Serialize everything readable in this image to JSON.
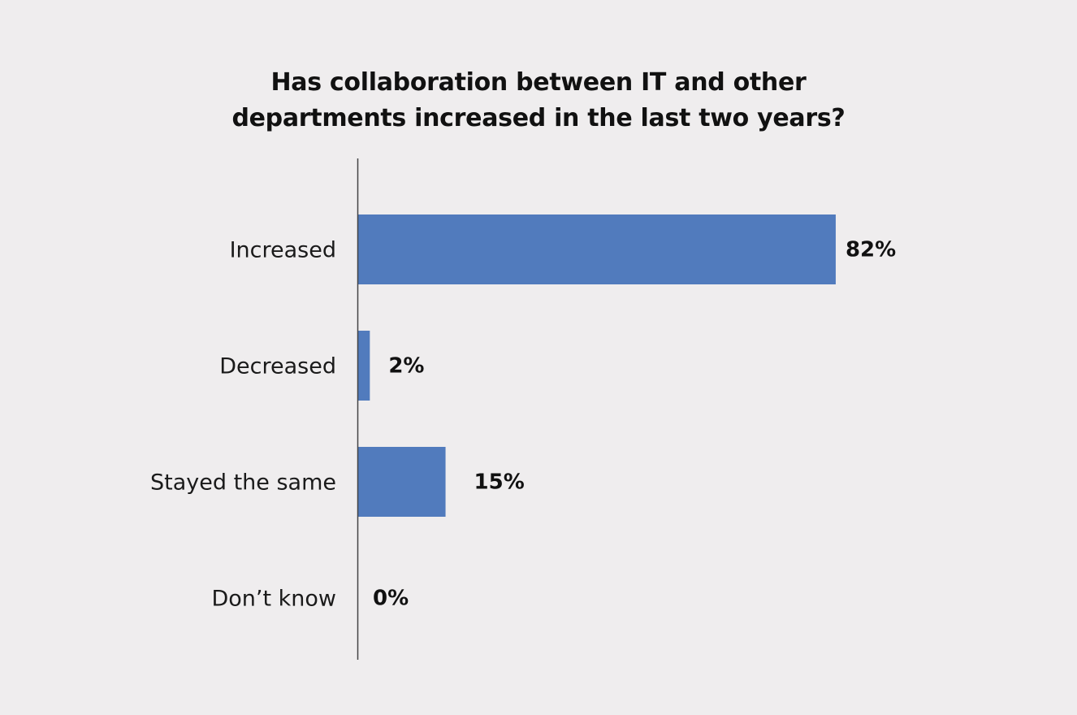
{
  "chart_data": {
    "type": "bar",
    "orientation": "horizontal",
    "title_lines": [
      "Has collaboration between IT and other",
      "departments increased in the last two years?"
    ],
    "categories": [
      "Increased",
      "Decreased",
      "Stayed the same",
      "Don’t know"
    ],
    "values": [
      82,
      2,
      15,
      0
    ],
    "value_labels": [
      "82%",
      "2%",
      "15%",
      "0%"
    ],
    "unit": "%",
    "xlim": [
      0,
      100
    ],
    "grid": false,
    "legend": "none",
    "colors": {
      "bar": "#517bbd",
      "axis": "#444444",
      "background": "#efedee"
    }
  }
}
